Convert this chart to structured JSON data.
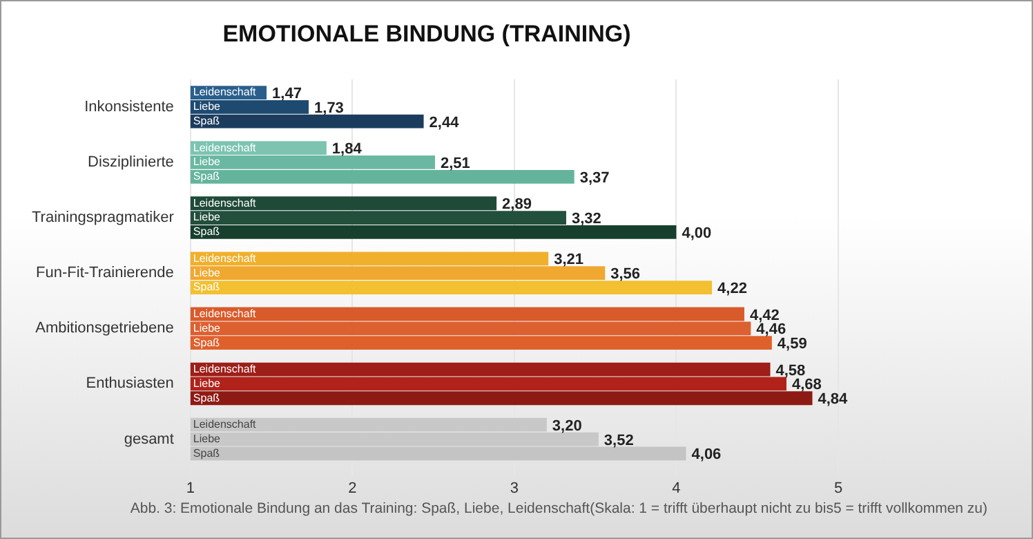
{
  "chart_data": {
    "type": "bar",
    "orientation": "horizontal",
    "title": "EMOTIONALE BINDUNG (TRAINING)",
    "categories": [
      "Inkonsistente",
      "Disziplinierte",
      "Trainingspragmatiker",
      "Fun-Fit-Trainierende",
      "Ambitionsgetriebene",
      "Enthusiasten",
      "gesamt"
    ],
    "series": [
      {
        "name": "Leidenschaft",
        "colors": [
          "#2a5f8c",
          "#7cc4b0",
          "#1f4a38",
          "#f0b02c",
          "#d95a2a",
          "#9e1e18",
          "#c8c8c8"
        ],
        "values": [
          1.47,
          1.84,
          2.89,
          3.21,
          4.42,
          4.58,
          3.2
        ],
        "value_labels": [
          "1,47",
          "1,84",
          "2,89",
          "3,21",
          "4,42",
          "4,58",
          "3,20"
        ]
      },
      {
        "name": "Liebe",
        "colors": [
          "#1e4a70",
          "#6ab8a2",
          "#234f3d",
          "#f0a830",
          "#dd6030",
          "#b0221a",
          "#c8c8c8"
        ],
        "values": [
          1.73,
          2.51,
          3.32,
          3.56,
          4.46,
          4.68,
          3.52
        ],
        "value_labels": [
          "1,73",
          "2,51",
          "3,32",
          "3,56",
          "4,46",
          "4,68",
          "3,52"
        ]
      },
      {
        "name": "Spaß",
        "colors": [
          "#1c3c5e",
          "#64b49c",
          "#173f2e",
          "#f2c030",
          "#e0602c",
          "#8e1a14",
          "#c4c4c4"
        ],
        "values": [
          2.44,
          3.37,
          4.0,
          4.22,
          4.59,
          4.84,
          4.06
        ],
        "value_labels": [
          "2,44",
          "3,37",
          "4,00",
          "4,22",
          "4,59",
          "4,84",
          "4,06"
        ]
      }
    ],
    "xlim": [
      1,
      5
    ],
    "xticks": [
      1,
      2,
      3,
      4,
      5
    ],
    "grid": "x",
    "legend": false,
    "annotations": [
      "Abb. 3: Emotionale Bindung an das Training: Spaß, Liebe, Leidenschaft(Skala: 1 = trifft überhaupt nicht zu bis5 = trifft vollkommen zu)"
    ]
  }
}
